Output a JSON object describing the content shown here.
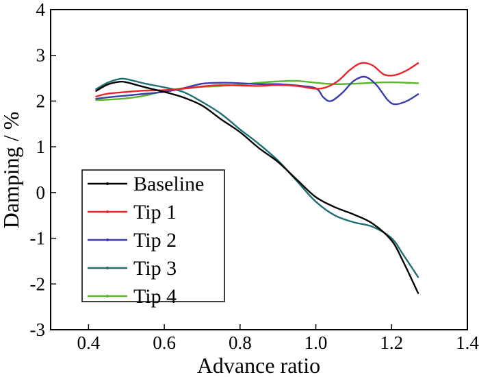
{
  "chart_data": {
    "type": "line",
    "title": "",
    "xlabel": "Advance ratio",
    "ylabel": "Damping / %",
    "xlim": [
      0.3,
      1.4
    ],
    "ylim": [
      -3,
      4
    ],
    "xticks": [
      0.4,
      0.6,
      0.8,
      1.0,
      1.2,
      1.4
    ],
    "xtick_labels": [
      "0.4",
      "0.6",
      "0.8",
      "1.0",
      "1.2",
      "1.4"
    ],
    "yticks": [
      -3,
      -2,
      -1,
      0,
      1,
      2,
      3,
      4
    ],
    "ytick_labels": [
      "-3",
      "-2",
      "-1",
      "0",
      "1",
      "2",
      "3",
      "4"
    ],
    "legend_position": "bottom-left",
    "series": [
      {
        "name": "Baseline",
        "color": "#000000",
        "x": [
          0.42,
          0.45,
          0.48,
          0.5,
          0.55,
          0.6,
          0.65,
          0.7,
          0.75,
          0.8,
          0.85,
          0.9,
          0.95,
          1.0,
          1.05,
          1.1,
          1.15,
          1.2,
          1.23,
          1.27
        ],
        "y": [
          2.22,
          2.36,
          2.42,
          2.41,
          2.3,
          2.2,
          2.08,
          1.9,
          1.6,
          1.32,
          0.97,
          0.67,
          0.28,
          -0.1,
          -0.32,
          -0.48,
          -0.68,
          -1.05,
          -1.5,
          -2.2
        ]
      },
      {
        "name": "Tip 1",
        "color": "#e8262a",
        "x": [
          0.42,
          0.45,
          0.5,
          0.55,
          0.6,
          0.65,
          0.7,
          0.75,
          0.8,
          0.85,
          0.9,
          0.95,
          1.0,
          1.03,
          1.06,
          1.09,
          1.12,
          1.15,
          1.18,
          1.21,
          1.24,
          1.27
        ],
        "y": [
          2.1,
          2.16,
          2.2,
          2.23,
          2.24,
          2.27,
          2.32,
          2.35,
          2.34,
          2.33,
          2.35,
          2.33,
          2.27,
          2.31,
          2.45,
          2.68,
          2.83,
          2.78,
          2.58,
          2.57,
          2.67,
          2.83
        ]
      },
      {
        "name": "Tip 2",
        "color": "#3b3cab",
        "x": [
          0.42,
          0.45,
          0.5,
          0.55,
          0.6,
          0.65,
          0.7,
          0.75,
          0.8,
          0.85,
          0.9,
          0.95,
          1.0,
          1.02,
          1.04,
          1.07,
          1.1,
          1.13,
          1.16,
          1.19,
          1.21,
          1.24,
          1.27
        ],
        "y": [
          2.05,
          2.08,
          2.12,
          2.16,
          2.2,
          2.28,
          2.38,
          2.4,
          2.39,
          2.37,
          2.37,
          2.34,
          2.28,
          2.08,
          2.0,
          2.18,
          2.44,
          2.53,
          2.35,
          2.02,
          1.93,
          2.0,
          2.15
        ]
      },
      {
        "name": "Tip 3",
        "color": "#1c6f72",
        "x": [
          0.42,
          0.45,
          0.48,
          0.5,
          0.55,
          0.6,
          0.65,
          0.7,
          0.75,
          0.8,
          0.85,
          0.9,
          0.95,
          1.0,
          1.05,
          1.1,
          1.15,
          1.2,
          1.23,
          1.27
        ],
        "y": [
          2.26,
          2.4,
          2.48,
          2.48,
          2.38,
          2.3,
          2.2,
          1.98,
          1.72,
          1.38,
          1.06,
          0.7,
          0.25,
          -0.2,
          -0.5,
          -0.65,
          -0.75,
          -1.0,
          -1.35,
          -1.85
        ]
      },
      {
        "name": "Tip 4",
        "color": "#5ab52a",
        "x": [
          0.42,
          0.45,
          0.5,
          0.55,
          0.6,
          0.65,
          0.7,
          0.75,
          0.8,
          0.85,
          0.9,
          0.95,
          1.0,
          1.05,
          1.1,
          1.15,
          1.2,
          1.27
        ],
        "y": [
          2.02,
          2.03,
          2.06,
          2.12,
          2.22,
          2.28,
          2.31,
          2.33,
          2.36,
          2.4,
          2.43,
          2.44,
          2.4,
          2.37,
          2.38,
          2.4,
          2.41,
          2.39
        ]
      }
    ]
  }
}
